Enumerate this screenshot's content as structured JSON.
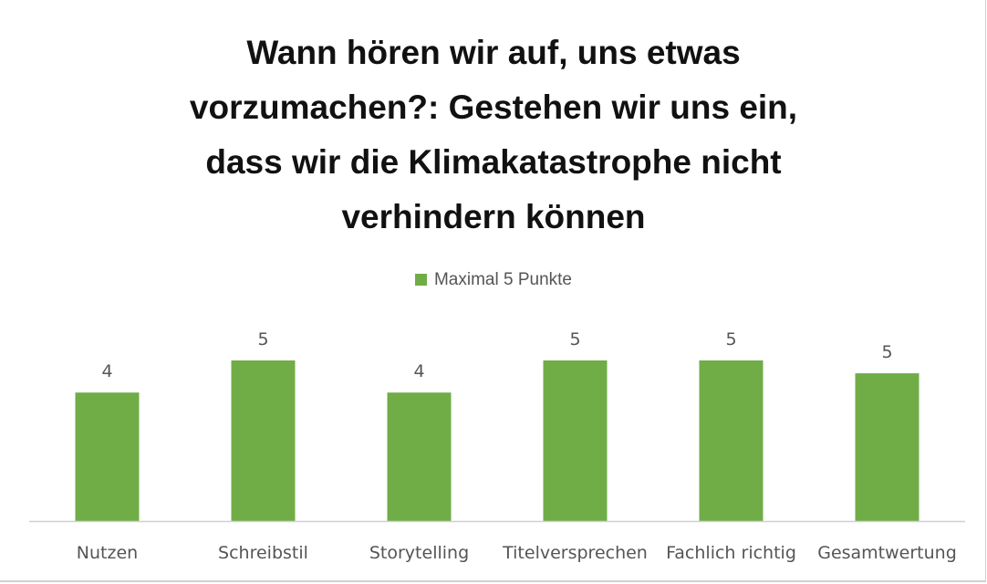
{
  "chart_data": {
    "type": "bar",
    "title": "Wann hören wir auf, uns etwas vorzumachen?: Gestehen wir uns ein, dass wir die Klimakatastrophe nicht verhindern können",
    "title_lines": [
      "Wann hören wir auf, uns etwas",
      "vorzumachen?: Gestehen wir uns ein,",
      "dass wir die Klimakatastrophe nicht",
      "verhindern können"
    ],
    "categories": [
      "Nutzen",
      "Schreibstil",
      "Storytelling",
      "Titelversprechen",
      "Fachlich richtig",
      "Gesamtwertung"
    ],
    "series": [
      {
        "name": "Maximal 5 Punkte",
        "values": [
          4,
          5,
          4,
          5,
          5,
          4.6
        ],
        "data_labels": [
          "4",
          "5",
          "4",
          "5",
          "5",
          "5"
        ],
        "color": "#70ad47"
      }
    ],
    "ylim": [
      0,
      5
    ],
    "grid": false,
    "legend_position": "top"
  }
}
